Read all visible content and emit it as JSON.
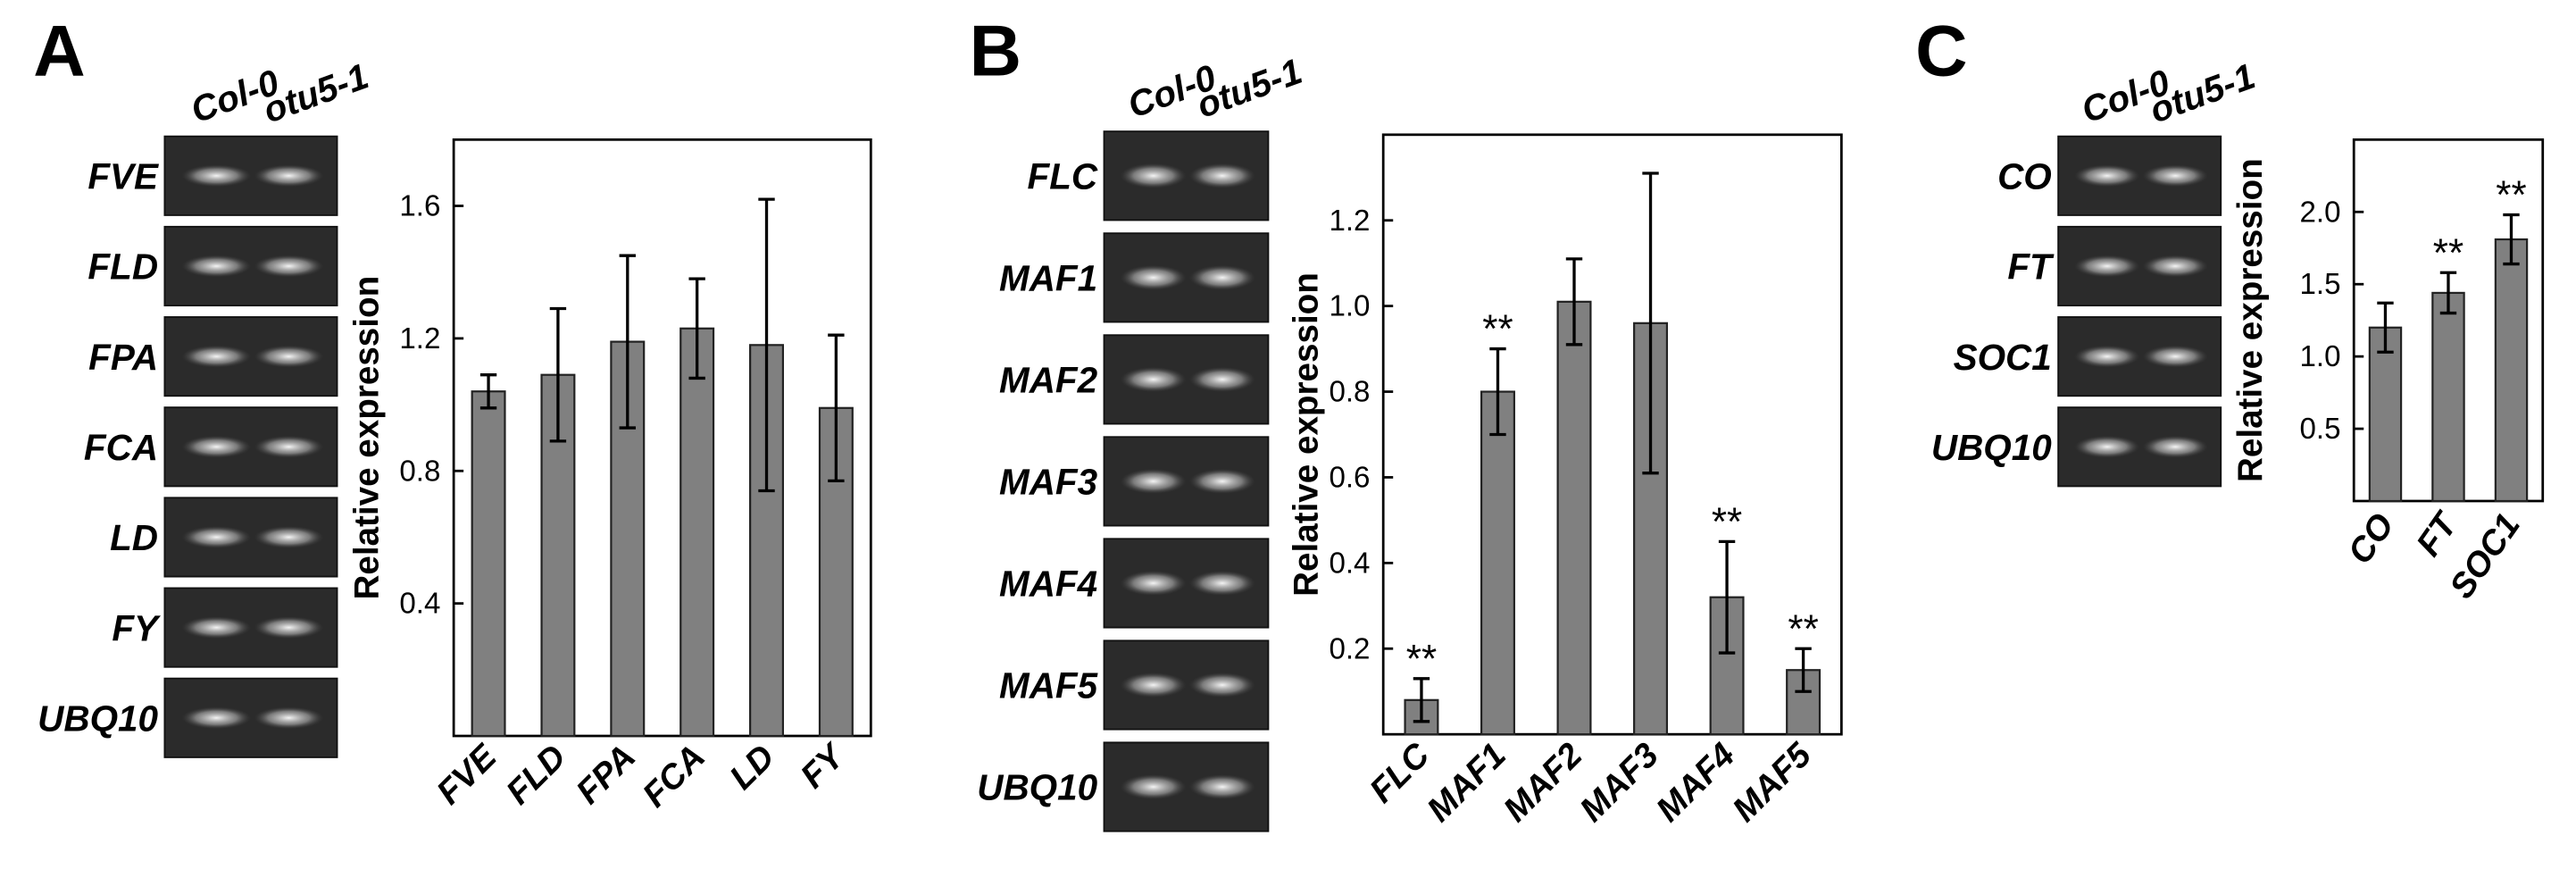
{
  "panel_labels": [
    "A",
    "B",
    "C"
  ],
  "gels": [
    {
      "columns": [
        "Col-0",
        "otu5-1"
      ],
      "rows": [
        "FVE",
        "FLD",
        "FPA",
        "FCA",
        "LD",
        "FY",
        "UBQ10"
      ]
    },
    {
      "columns": [
        "Col-0",
        "otu5-1"
      ],
      "rows": [
        "FLC",
        "MAF1",
        "MAF2",
        "MAF3",
        "MAF4",
        "MAF5",
        "UBQ10"
      ]
    },
    {
      "columns": [
        "Col-0",
        "otu5-1"
      ],
      "rows": [
        "CO",
        "FT",
        "SOC1",
        "UBQ10"
      ]
    }
  ],
  "chart_data": [
    {
      "type": "bar",
      "y_label": "Relative expression",
      "categories": [
        "FVE",
        "FLD",
        "FPA",
        "FCA",
        "LD",
        "FY"
      ],
      "values": [
        1.04,
        1.09,
        1.19,
        1.23,
        1.18,
        0.99
      ],
      "errors": [
        0.05,
        0.2,
        0.26,
        0.15,
        0.44,
        0.22
      ],
      "color": "#808080",
      "ylim": [
        0,
        1.8
      ],
      "yticks": [
        0.4,
        0.8,
        1.2,
        1.6
      ]
    },
    {
      "type": "bar",
      "y_label": "Relative expression",
      "categories": [
        "FLC",
        "MAF1",
        "MAF2",
        "MAF3",
        "MAF4",
        "MAF5"
      ],
      "values": [
        0.08,
        0.8,
        1.01,
        0.96,
        0.32,
        0.15
      ],
      "errors": [
        0.05,
        0.1,
        0.1,
        0.35,
        0.13,
        0.05
      ],
      "significance": [
        "**",
        "**",
        null,
        null,
        "**",
        "**"
      ],
      "color": "#808080",
      "ylim": [
        0,
        1.4
      ],
      "yticks": [
        0.2,
        0.4,
        0.6,
        0.8,
        {
          "value": 1,
          "label": "1.0"
        },
        1.2
      ]
    },
    {
      "type": "bar",
      "y_label": "Relative expression",
      "categories": [
        "CO",
        "FT",
        "SOC1"
      ],
      "values": [
        1.2,
        1.44,
        1.81
      ],
      "errors": [
        0.17,
        0.14,
        0.17
      ],
      "significance": [
        null,
        "**",
        "**"
      ],
      "color": "#808080",
      "ylim": [
        0,
        2.5
      ],
      "yticks": [
        0.5,
        {
          "value": 1,
          "label": "1.0"
        },
        1.5,
        {
          "value": 2,
          "label": "2.0"
        }
      ]
    }
  ]
}
